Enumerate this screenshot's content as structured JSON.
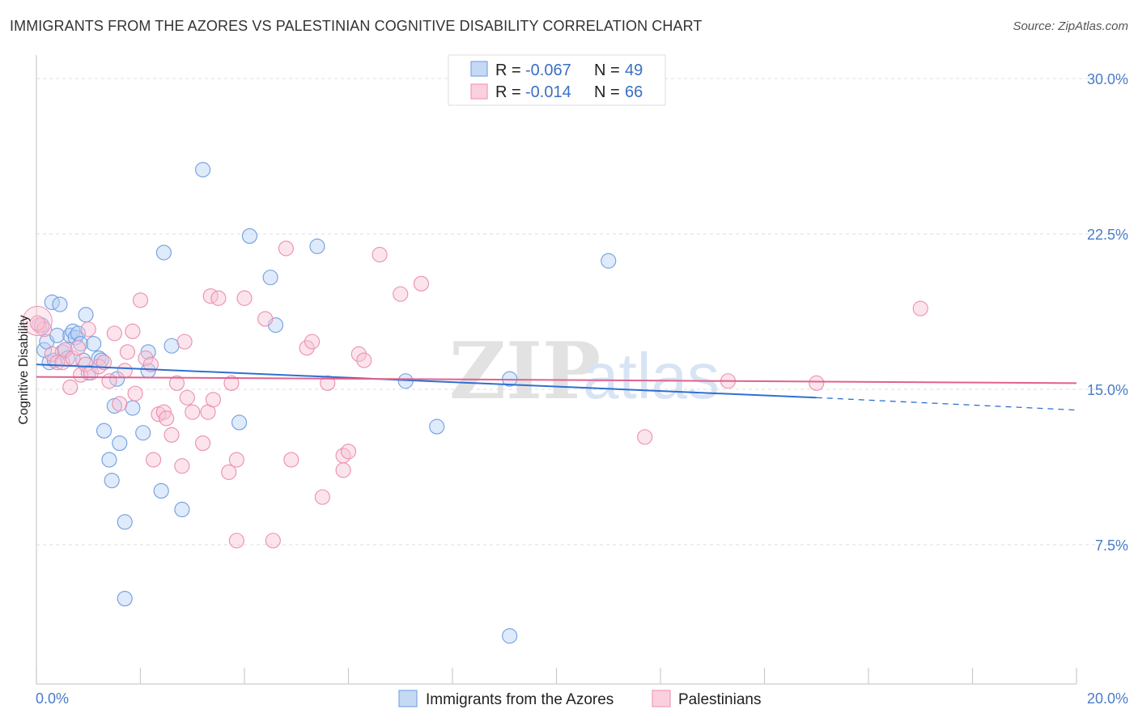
{
  "title": "IMMIGRANTS FROM THE AZORES VS PALESTINIAN COGNITIVE DISABILITY CORRELATION CHART",
  "source": "Source: ZipAtlas.com",
  "watermark": {
    "zip": "ZIP",
    "atlas": "atlas"
  },
  "legend_top": [
    {
      "r_label": "R =",
      "r_value": "-0.067",
      "n_label": "N =",
      "n_value": "49"
    },
    {
      "r_label": "R =",
      "r_value": "-0.014",
      "n_label": "N =",
      "n_value": "66"
    }
  ],
  "chart_data": {
    "type": "scatter",
    "title": "IMMIGRANTS FROM THE AZORES VS PALESTINIAN COGNITIVE DISABILITY CORRELATION CHART",
    "xlabel": "",
    "ylabel": "Cognitive Disability",
    "xlim": [
      0,
      20
    ],
    "ylim": [
      0,
      30
    ],
    "x_tick_labels": [
      "0.0%",
      "20.0%"
    ],
    "y_ticks": [
      7.5,
      15.0,
      22.5,
      30.0
    ],
    "y_tick_labels": [
      "7.5%",
      "15.0%",
      "22.5%",
      "30.0%"
    ],
    "grid": "horizontal dashed",
    "legend_placement": "top-center and bottom",
    "colors": {
      "azores": "#7aa7e6",
      "azores_line": "#2f6fd1",
      "palestinians": "#f09ab8",
      "palestinians_line": "#e0628f"
    },
    "series": [
      {
        "name": "Immigrants from the Azores",
        "color": "#7aa7e6",
        "trend": {
          "x0": 0,
          "y0": 16.2,
          "x1": 15.0,
          "y1": 14.6,
          "dash_to_x": 20,
          "dash_to_y": 14.0
        },
        "points": [
          [
            0.1,
            18.1
          ],
          [
            0.15,
            16.9
          ],
          [
            0.2,
            17.3
          ],
          [
            0.25,
            16.3
          ],
          [
            0.3,
            19.2
          ],
          [
            0.35,
            16.4
          ],
          [
            0.4,
            17.6
          ],
          [
            0.45,
            19.1
          ],
          [
            0.5,
            16.8
          ],
          [
            0.55,
            16.9
          ],
          [
            0.6,
            16.5
          ],
          [
            0.65,
            17.6
          ],
          [
            0.7,
            17.8
          ],
          [
            0.75,
            17.5
          ],
          [
            0.8,
            17.7
          ],
          [
            0.85,
            17.2
          ],
          [
            0.9,
            16.4
          ],
          [
            0.95,
            18.6
          ],
          [
            1.0,
            15.8
          ],
          [
            1.1,
            17.2
          ],
          [
            1.2,
            16.5
          ],
          [
            1.25,
            16.4
          ],
          [
            1.3,
            13.0
          ],
          [
            1.4,
            11.6
          ],
          [
            1.45,
            10.6
          ],
          [
            1.5,
            14.2
          ],
          [
            1.55,
            15.5
          ],
          [
            1.6,
            12.4
          ],
          [
            1.7,
            8.6
          ],
          [
            1.7,
            4.9
          ],
          [
            1.85,
            14.1
          ],
          [
            2.05,
            12.9
          ],
          [
            2.15,
            16.8
          ],
          [
            2.15,
            15.9
          ],
          [
            2.4,
            10.1
          ],
          [
            2.45,
            21.6
          ],
          [
            2.6,
            17.1
          ],
          [
            2.8,
            9.2
          ],
          [
            3.2,
            25.6
          ],
          [
            3.9,
            13.4
          ],
          [
            4.1,
            22.4
          ],
          [
            4.5,
            20.4
          ],
          [
            4.6,
            18.1
          ],
          [
            5.4,
            21.9
          ],
          [
            7.1,
            15.4
          ],
          [
            7.7,
            13.2
          ],
          [
            9.1,
            3.1
          ],
          [
            9.1,
            15.5
          ],
          [
            11.0,
            21.2
          ]
        ]
      },
      {
        "name": "Palestinians",
        "color": "#f09ab8",
        "trend": {
          "x0": 0,
          "y0": 15.6,
          "x1": 20,
          "y1": 15.3
        },
        "points": [
          [
            0.05,
            18.1
          ],
          [
            0.15,
            17.9
          ],
          [
            0.3,
            16.7
          ],
          [
            0.4,
            16.3
          ],
          [
            0.5,
            16.3
          ],
          [
            0.55,
            16.9
          ],
          [
            0.65,
            15.1
          ],
          [
            0.7,
            16.5
          ],
          [
            0.8,
            17.0
          ],
          [
            0.85,
            15.7
          ],
          [
            0.95,
            16.2
          ],
          [
            1.0,
            17.9
          ],
          [
            1.05,
            15.8
          ],
          [
            1.2,
            16.1
          ],
          [
            1.3,
            16.3
          ],
          [
            1.4,
            15.4
          ],
          [
            1.5,
            17.7
          ],
          [
            1.6,
            14.3
          ],
          [
            1.7,
            15.9
          ],
          [
            1.75,
            16.8
          ],
          [
            1.85,
            17.8
          ],
          [
            1.9,
            14.8
          ],
          [
            2.0,
            19.3
          ],
          [
            2.1,
            16.5
          ],
          [
            2.2,
            16.2
          ],
          [
            2.25,
            11.6
          ],
          [
            2.35,
            13.8
          ],
          [
            2.45,
            13.9
          ],
          [
            2.5,
            13.6
          ],
          [
            2.6,
            12.8
          ],
          [
            2.7,
            15.3
          ],
          [
            2.8,
            11.3
          ],
          [
            2.85,
            17.3
          ],
          [
            2.9,
            14.6
          ],
          [
            3.0,
            13.9
          ],
          [
            3.2,
            12.4
          ],
          [
            3.3,
            13.9
          ],
          [
            3.35,
            19.5
          ],
          [
            3.4,
            14.5
          ],
          [
            3.5,
            19.4
          ],
          [
            3.7,
            11.0
          ],
          [
            3.75,
            15.3
          ],
          [
            3.85,
            11.6
          ],
          [
            3.85,
            7.7
          ],
          [
            4.0,
            19.4
          ],
          [
            4.4,
            18.4
          ],
          [
            4.55,
            7.7
          ],
          [
            4.8,
            21.8
          ],
          [
            4.9,
            11.6
          ],
          [
            5.2,
            17.0
          ],
          [
            5.3,
            17.3
          ],
          [
            5.5,
            9.8
          ],
          [
            5.6,
            15.3
          ],
          [
            5.9,
            11.1
          ],
          [
            5.9,
            11.8
          ],
          [
            6.0,
            12.0
          ],
          [
            6.2,
            16.7
          ],
          [
            6.3,
            16.4
          ],
          [
            6.6,
            21.5
          ],
          [
            7.0,
            19.6
          ],
          [
            7.4,
            20.1
          ],
          [
            11.7,
            12.7
          ],
          [
            13.3,
            15.4
          ],
          [
            15.0,
            15.3
          ],
          [
            17.0,
            18.9
          ],
          [
            0.02,
            18.2
          ]
        ]
      }
    ]
  }
}
